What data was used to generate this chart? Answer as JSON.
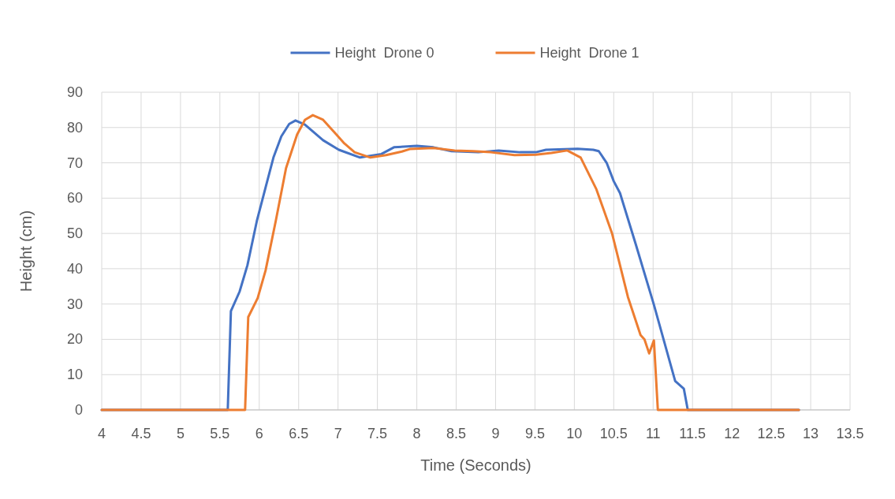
{
  "chart_data": {
    "type": "line",
    "xlabel": "Time (Seconds)",
    "ylabel": "Height (cm)",
    "xlim": [
      4,
      13.5
    ],
    "ylim": [
      0,
      90
    ],
    "xticks": [
      4,
      4.5,
      5,
      5.5,
      6,
      6.5,
      7,
      7.5,
      8,
      8.5,
      9,
      9.5,
      10,
      10.5,
      11,
      11.5,
      12,
      12.5,
      13,
      13.5
    ],
    "yticks": [
      0,
      10,
      20,
      30,
      40,
      50,
      60,
      70,
      80,
      90
    ],
    "grid": true,
    "legend": "top",
    "marker": "none",
    "line_style": "solid",
    "series": [
      {
        "name": "Height  Drone 0",
        "color": "#4472c4",
        "x": [
          4,
          5.6,
          5.64,
          5.75,
          5.85,
          5.97,
          6.08,
          6.18,
          6.28,
          6.38,
          6.46,
          6.58,
          6.81,
          7.01,
          7.28,
          7.55,
          7.71,
          8,
          8.21,
          8.44,
          8.78,
          9.04,
          9.31,
          9.51,
          9.64,
          10.04,
          10.24,
          10.31,
          10.41,
          10.5,
          10.58,
          10.78,
          11.01,
          11.28,
          11.39,
          11.44,
          12.85
        ],
        "values": [
          0,
          0,
          28,
          33.5,
          41,
          53.6,
          63,
          71.5,
          77.5,
          81,
          82,
          80.8,
          76.4,
          73.7,
          71.5,
          72.5,
          74.4,
          74.8,
          74.4,
          73.3,
          73,
          73.5,
          73,
          73,
          73.7,
          74,
          73.7,
          73.3,
          70,
          64.8,
          61.4,
          46.9,
          29.8,
          8.2,
          6,
          0,
          0
        ]
      },
      {
        "name": "Height  Drone 1",
        "color": "#ed7d31",
        "x": [
          4,
          5.82,
          5.86,
          5.98,
          6.08,
          6.21,
          6.34,
          6.48,
          6.58,
          6.68,
          6.81,
          6.98,
          7.08,
          7.21,
          7.41,
          7.61,
          7.81,
          7.91,
          8.21,
          8.48,
          8.71,
          8.94,
          9.24,
          9.51,
          9.71,
          9.91,
          10.08,
          10.28,
          10.48,
          10.68,
          10.84,
          10.89,
          10.95,
          11.01,
          11.06,
          12.85
        ],
        "values": [
          0,
          0,
          26.3,
          31.7,
          39.5,
          53.6,
          68.5,
          78,
          82.2,
          83.5,
          82.2,
          78,
          75.5,
          73,
          71.5,
          72.2,
          73.2,
          73.9,
          74.2,
          73.5,
          73.3,
          73,
          72.2,
          72.3,
          72.8,
          73.5,
          71.5,
          62.5,
          49.9,
          32,
          21.2,
          20,
          16,
          19.7,
          0,
          0
        ]
      }
    ]
  }
}
